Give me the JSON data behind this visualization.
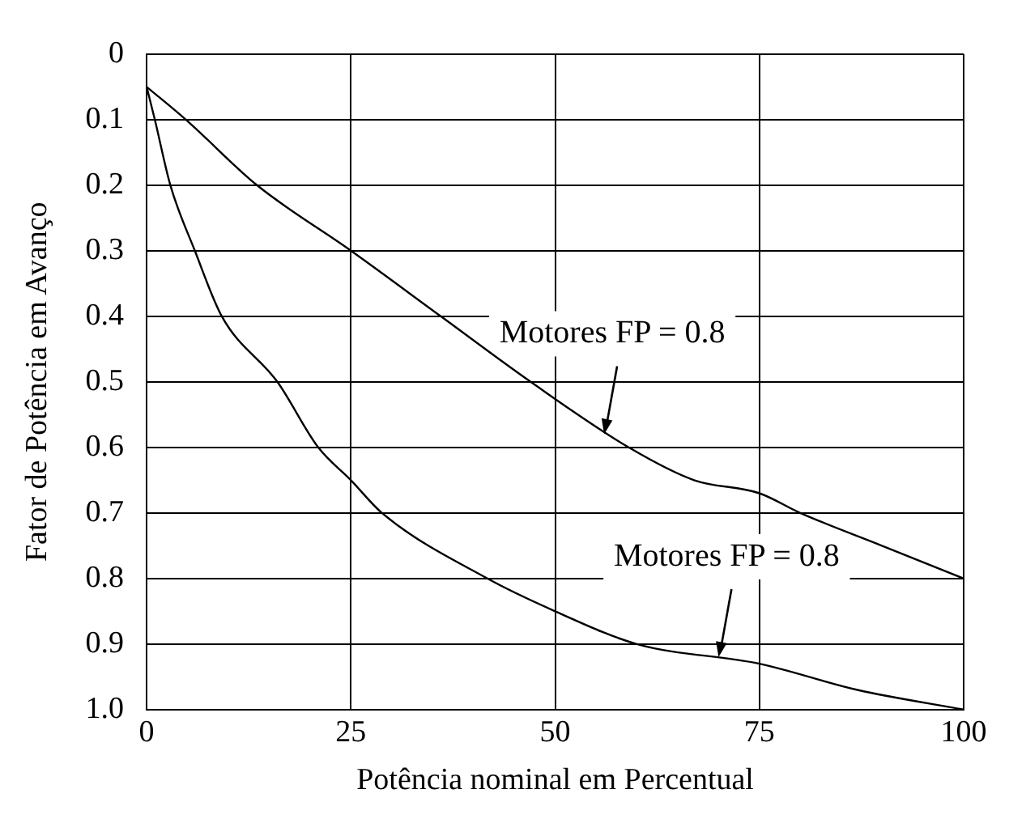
{
  "chart_data": {
    "type": "line",
    "xlabel": "Potência nominal em Percentual",
    "ylabel": "Fator de Potência em Avanço",
    "xlim": [
      0,
      100
    ],
    "xticks": [
      0,
      25,
      50,
      75,
      100
    ],
    "ylim": [
      1,
      0
    ],
    "yticks": [
      0,
      0.1,
      0.2,
      0.3,
      0.4,
      0.5,
      0.6,
      0.7,
      0.8,
      0.9,
      {
        "value": 1,
        "label": "1.0"
      }
    ],
    "grid": true,
    "marker": "none",
    "line_style": "solid",
    "series": [
      {
        "color": "#000000",
        "x": [
          0,
          4.8,
          13.5,
          25,
          36,
          47,
          59,
          67,
          75,
          80,
          90,
          100
        ],
        "values": [
          0.05,
          0.1,
          0.2,
          0.3,
          0.4,
          0.5,
          0.6,
          0.65,
          0.67,
          0.7,
          0.75,
          0.8
        ]
      },
      {
        "color": "#000000",
        "x": [
          0,
          1,
          2.9,
          5.9,
          9.2,
          16,
          21,
          25,
          28.8,
          41.7,
          50,
          60,
          75,
          87,
          100
        ],
        "values": [
          0.05,
          0.1,
          0.2,
          0.3,
          0.4,
          0.5,
          0.6,
          0.65,
          0.7,
          0.8,
          0.85,
          0.9,
          0.93,
          0.97,
          1
        ]
      }
    ],
    "annotations": [
      {
        "text": "Motores FP = 0.8",
        "x": 56,
        "y": 0.58
      },
      {
        "text": "Motores FP = 0.8",
        "x": 70,
        "y": 0.92
      }
    ]
  }
}
